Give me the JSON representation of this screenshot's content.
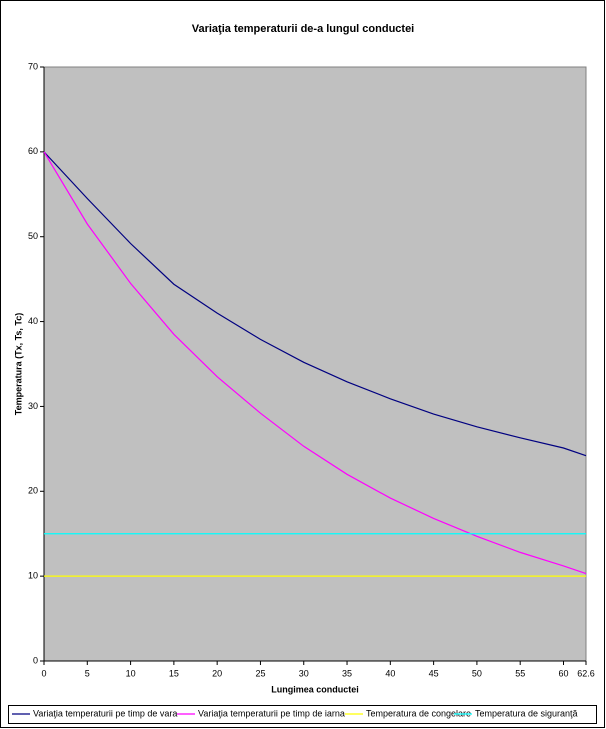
{
  "chart_data": {
    "type": "line",
    "title": "Variaţia temperaturii de-a lungul conductei",
    "xlabel": "Lungimea conductei",
    "ylabel": "Temperatura (Tx, Ts, Tc)",
    "x": [
      0,
      5,
      10,
      15,
      20,
      25,
      30,
      35,
      40,
      45,
      50,
      55,
      60,
      62.6
    ],
    "series": [
      {
        "name": "Variaţia temperaturii pe timp de vara",
        "color": "#000080",
        "values": [
          60,
          54.5,
          49.2,
          44.4,
          41.0,
          37.9,
          35.2,
          32.9,
          30.9,
          29.1,
          27.6,
          26.3,
          25.1,
          24.2
        ]
      },
      {
        "name": "Variaţia temperaturii pe timp de iarna",
        "color": "#ff00ff",
        "values": [
          60,
          51.5,
          44.5,
          38.5,
          33.5,
          29.2,
          25.3,
          22.0,
          19.2,
          16.8,
          14.7,
          12.8,
          11.2,
          10.3
        ]
      },
      {
        "name": "Temperatura de congelare",
        "color": "#ffff00",
        "values": [
          10,
          10,
          10,
          10,
          10,
          10,
          10,
          10,
          10,
          10,
          10,
          10,
          10,
          10
        ]
      },
      {
        "name": "Temperatura de siguranţă",
        "color": "#00ffff",
        "values": [
          15,
          15,
          15,
          15,
          15,
          15,
          15,
          15,
          15,
          15,
          15,
          15,
          15,
          15
        ]
      }
    ],
    "xlim": [
      0,
      62.6
    ],
    "xticks": [
      0,
      5,
      10,
      15,
      20,
      25,
      30,
      35,
      40,
      45,
      50,
      55,
      60,
      62.6
    ],
    "ylim": [
      0,
      70
    ],
    "yticks": [
      0,
      10,
      20,
      30,
      40,
      50,
      60,
      70
    ],
    "plot_background": "#c0c0c0",
    "legend": "bottom"
  }
}
